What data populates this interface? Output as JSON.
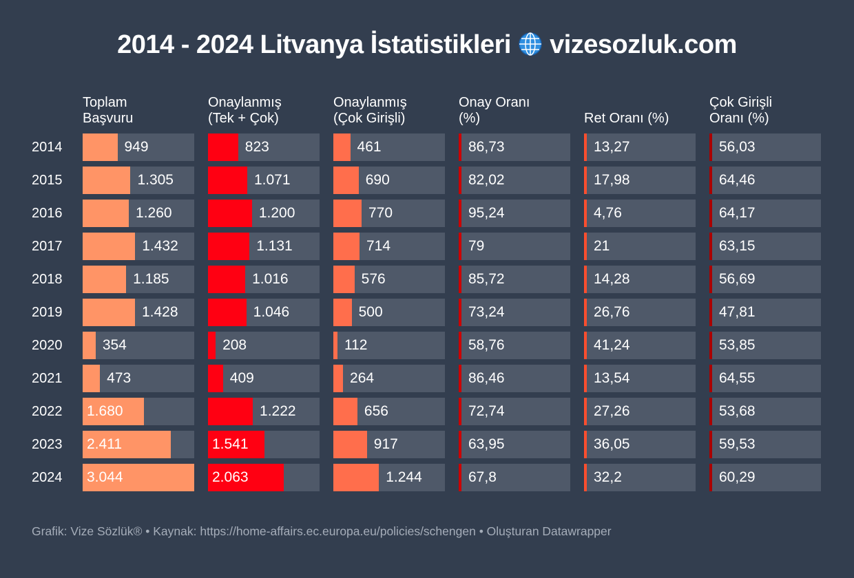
{
  "title": "2014 - 2024 Litvanya İstatistikleri",
  "title_site": "vizesozluk.com",
  "footer": "Grafik: Vize Sözlük® • Kaynak: https://home-affairs.ec.europa.eu/policies/schengen • Oluşturan Datawrapper",
  "chart_data": {
    "type": "table",
    "title": "2014 - 2024 Litvanya İstatistikleri 🌐 vizesozluk.com",
    "bar_scale_max": 3044,
    "rows": [
      "2014",
      "2015",
      "2016",
      "2017",
      "2018",
      "2019",
      "2020",
      "2021",
      "2022",
      "2023",
      "2024"
    ],
    "columns": [
      {
        "name": "Toplam Başvuru",
        "line1": "Toplam",
        "line2": "Başvuru",
        "kind": "bar",
        "color": "#ff9466",
        "values": [
          949,
          1305,
          1260,
          1432,
          1185,
          1428,
          354,
          473,
          1680,
          2411,
          3044
        ],
        "labels": [
          "949",
          "1.305",
          "1.260",
          "1.432",
          "1.185",
          "1.428",
          "354",
          "473",
          "1.680",
          "2.411",
          "3.044"
        ]
      },
      {
        "name": "Onaylanmış (Tek + Çok)",
        "line1": "Onaylanmış",
        "line2": "(Tek + Çok)",
        "kind": "bar",
        "color": "#ff0012",
        "values": [
          823,
          1071,
          1200,
          1131,
          1016,
          1046,
          208,
          409,
          1222,
          1541,
          2063
        ],
        "labels": [
          "823",
          "1.071",
          "1.200",
          "1.131",
          "1.016",
          "1.046",
          "208",
          "409",
          "1.222",
          "1.541",
          "2.063"
        ]
      },
      {
        "name": "Onaylanmış (Çok Girişli)",
        "line1": "Onaylanmış",
        "line2": "(Çok Girişli)",
        "kind": "bar",
        "color": "#ff6e4c",
        "values": [
          461,
          690,
          770,
          714,
          576,
          500,
          112,
          264,
          656,
          917,
          1244
        ],
        "labels": [
          "461",
          "690",
          "770",
          "714",
          "576",
          "500",
          "112",
          "264",
          "656",
          "917",
          "1.244"
        ]
      },
      {
        "name": "Onay Oranı (%)",
        "line1": "Onay Oranı",
        "line2": "(%)",
        "kind": "pct",
        "color": "#cc0000",
        "values": [
          86.73,
          82.02,
          95.24,
          79,
          85.72,
          73.24,
          58.76,
          86.46,
          72.74,
          63.95,
          67.8
        ],
        "labels": [
          "86,73",
          "82,02",
          "95,24",
          "79",
          "85,72",
          "73,24",
          "58,76",
          "86,46",
          "72,74",
          "63,95",
          "67,8"
        ]
      },
      {
        "name": "Ret Oranı (%)",
        "line1": "Ret Oranı (%)",
        "line2": "",
        "kind": "pct",
        "color": "#ff4e2e",
        "values": [
          13.27,
          17.98,
          4.76,
          21,
          14.28,
          26.76,
          41.24,
          13.54,
          27.26,
          36.05,
          32.2
        ],
        "labels": [
          "13,27",
          "17,98",
          "4,76",
          "21",
          "14,28",
          "26,76",
          "41,24",
          "13,54",
          "27,26",
          "36,05",
          "32,2"
        ]
      },
      {
        "name": "Çok Girişli Oranı (%)",
        "line1": "Çok Girişli",
        "line2": "Oranı (%)",
        "kind": "pct",
        "color": "#aa0000",
        "values": [
          56.03,
          64.46,
          64.17,
          63.15,
          56.69,
          47.81,
          53.85,
          64.55,
          53.68,
          59.53,
          60.29
        ],
        "labels": [
          "56,03",
          "64,46",
          "64,17",
          "63,15",
          "56,69",
          "47,81",
          "53,85",
          "64,55",
          "53,68",
          "59,53",
          "60,29"
        ]
      }
    ]
  }
}
